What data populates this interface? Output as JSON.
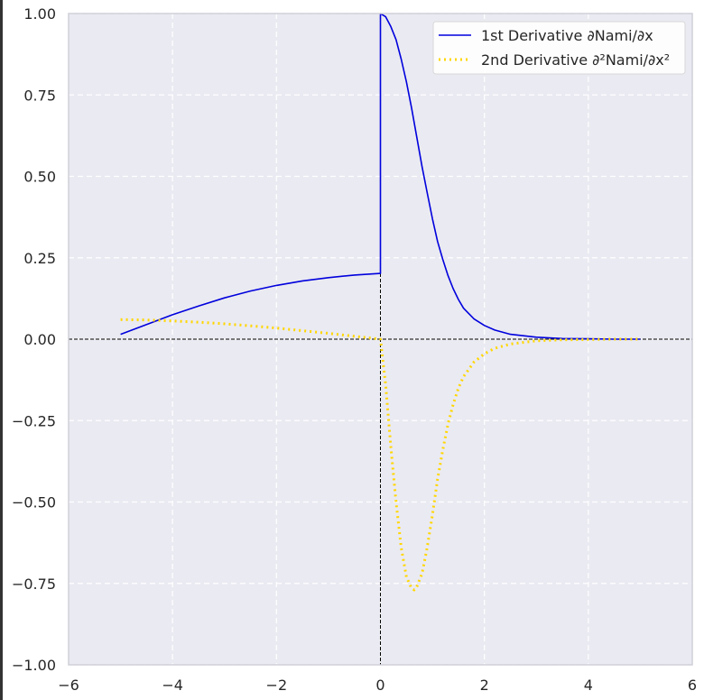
{
  "chart_data": {
    "type": "line",
    "title": "",
    "xlabel": "",
    "ylabel": "",
    "xlim": [
      -6,
      6
    ],
    "ylim": [
      -1,
      1
    ],
    "x_ticks": [
      -6,
      -4,
      -2,
      0,
      2,
      4,
      6
    ],
    "y_ticks": [
      -1,
      -0.75,
      -0.5,
      -0.25,
      0,
      0.25,
      0.5,
      0.75,
      1
    ],
    "x_tick_labels": [
      "−6",
      "−4",
      "−2",
      "0",
      "2",
      "4",
      "6"
    ],
    "y_tick_labels": [
      "−1.00",
      "−0.75",
      "−0.50",
      "−0.25",
      "0.00",
      "0.25",
      "0.50",
      "0.75",
      "1.00"
    ],
    "grid": true,
    "background_color": "#eaeaf2",
    "grid_color": "#ffffff",
    "legend_position": "top-right",
    "reference_lines": [
      {
        "orientation": "horizontal",
        "value": 0,
        "style": "dashed",
        "color": "#000000"
      },
      {
        "orientation": "vertical",
        "value": 0,
        "style": "dashed",
        "color": "#000000"
      }
    ],
    "series": [
      {
        "name": "1st Derivative ∂Nami/∂x",
        "color": "#0000dd",
        "style": "solid",
        "x": [
          -5,
          -4.5,
          -4,
          -3.5,
          -3,
          -2.5,
          -2,
          -1.5,
          -1,
          -0.5,
          0,
          0,
          0.1,
          0.2,
          0.3,
          0.4,
          0.5,
          0.6,
          0.7,
          0.8,
          0.9,
          1.0,
          1.1,
          1.2,
          1.3,
          1.4,
          1.5,
          1.6,
          1.8,
          2.0,
          2.2,
          2.5,
          3.0,
          3.5,
          4.0,
          4.5,
          5.0
        ],
        "y": [
          0.015,
          0.045,
          0.075,
          0.102,
          0.127,
          0.148,
          0.165,
          0.179,
          0.189,
          0.197,
          0.202,
          1.0,
          0.99,
          0.96,
          0.92,
          0.86,
          0.79,
          0.71,
          0.62,
          0.53,
          0.45,
          0.37,
          0.3,
          0.245,
          0.195,
          0.155,
          0.122,
          0.095,
          0.062,
          0.042,
          0.028,
          0.015,
          0.006,
          0.002,
          0.001,
          0.0,
          0.0
        ]
      },
      {
        "name": "2nd Derivative ∂²Nami/∂x²",
        "color": "#ffd700",
        "style": "dotted",
        "x": [
          -5,
          -4.5,
          -4,
          -3.5,
          -3,
          -2.5,
          -2,
          -1.5,
          -1,
          -0.5,
          0,
          0.1,
          0.2,
          0.3,
          0.4,
          0.5,
          0.6,
          0.65,
          0.7,
          0.8,
          0.9,
          1.0,
          1.1,
          1.2,
          1.3,
          1.4,
          1.5,
          1.6,
          1.8,
          2.0,
          2.2,
          2.5,
          3.0,
          3.5,
          4.0,
          4.5,
          5.0
        ],
        "y": [
          0.06,
          0.059,
          0.056,
          0.052,
          0.047,
          0.041,
          0.034,
          0.026,
          0.018,
          0.009,
          0.0,
          -0.14,
          -0.33,
          -0.5,
          -0.64,
          -0.73,
          -0.765,
          -0.77,
          -0.76,
          -0.72,
          -0.64,
          -0.54,
          -0.43,
          -0.34,
          -0.26,
          -0.2,
          -0.15,
          -0.115,
          -0.07,
          -0.045,
          -0.028,
          -0.015,
          -0.005,
          -0.002,
          -0.001,
          0.0,
          0.0
        ]
      }
    ]
  }
}
